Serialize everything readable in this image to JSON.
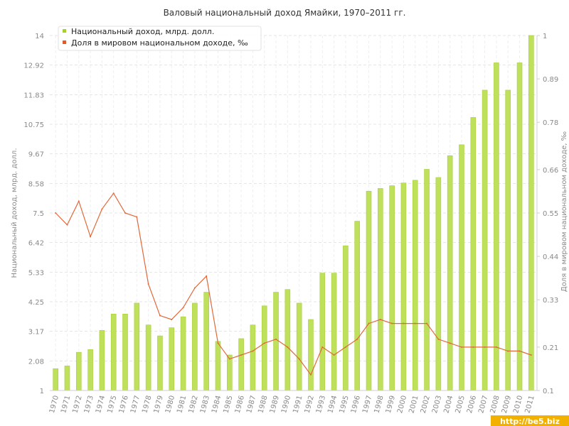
{
  "watermark": "http://be5.biz",
  "colors": {
    "bar": "#bfe05a",
    "bar_stroke": "#a9cf3f",
    "line": "#e0693a",
    "legend_bar": "#a4d22a",
    "legend_line": "#e05a2a",
    "grid": "#e6e6e6",
    "axis": "#cfcfcf"
  },
  "chart_data": {
    "type": "bar",
    "title": "Валовый национальный доход Ямайки, 1970–2011 гг.",
    "ylabel_left": "Национальный доход, млрд. долл.",
    "ylabel_right": "Доля в мировом национальном доходе, ‰",
    "left_ticks": [
      "1",
      "2.08",
      "3.17",
      "4.25",
      "5.33",
      "6.42",
      "7.5",
      "8.58",
      "9.67",
      "10.75",
      "11.83",
      "12.92",
      "14"
    ],
    "right_ticks": [
      "0.1",
      "0.21",
      "0.33",
      "0.44",
      "0.55",
      "0.66",
      "0.78",
      "0.89",
      "1"
    ],
    "ylim_left": [
      1,
      14
    ],
    "ylim_right": [
      0.1,
      1
    ],
    "grid": true,
    "legend_position": "top-left",
    "categories": [
      "1970",
      "1971",
      "1972",
      "1973",
      "1974",
      "1975",
      "1976",
      "1977",
      "1978",
      "1979",
      "1980",
      "1981",
      "1982",
      "1983",
      "1984",
      "1985",
      "1986",
      "1987",
      "1988",
      "1989",
      "1990",
      "1991",
      "1992",
      "1993",
      "1994",
      "1995",
      "1996",
      "1997",
      "1998",
      "1999",
      "2000",
      "2001",
      "2002",
      "2003",
      "2004",
      "2005",
      "2006",
      "2007",
      "2008",
      "2009",
      "2010",
      "2011"
    ],
    "series": [
      {
        "name": "Национальный доход, млрд. долл.",
        "type": "bar",
        "axis": "left",
        "values": [
          1.8,
          1.9,
          2.4,
          2.5,
          3.2,
          3.8,
          3.8,
          4.2,
          3.4,
          3.0,
          3.3,
          3.7,
          4.2,
          4.6,
          2.8,
          2.3,
          2.9,
          3.4,
          4.1,
          4.6,
          4.7,
          4.2,
          3.6,
          5.3,
          5.3,
          6.3,
          7.2,
          8.3,
          8.4,
          8.5,
          8.6,
          8.7,
          9.1,
          8.8,
          9.6,
          10.0,
          11.0,
          12.0,
          13.0,
          12.0,
          13.0,
          14.0
        ]
      },
      {
        "name": "Доля в мировом национальном доходе, ‰",
        "type": "line",
        "axis": "right",
        "values": [
          0.55,
          0.52,
          0.58,
          0.49,
          0.56,
          0.6,
          0.55,
          0.54,
          0.37,
          0.29,
          0.28,
          0.31,
          0.36,
          0.39,
          0.22,
          0.18,
          0.19,
          0.2,
          0.22,
          0.23,
          0.21,
          0.18,
          0.14,
          0.21,
          0.19,
          0.21,
          0.23,
          0.27,
          0.28,
          0.27,
          0.27,
          0.27,
          0.27,
          0.23,
          0.22,
          0.21,
          0.21,
          0.21,
          0.21,
          0.2,
          0.2,
          0.19
        ]
      }
    ]
  }
}
